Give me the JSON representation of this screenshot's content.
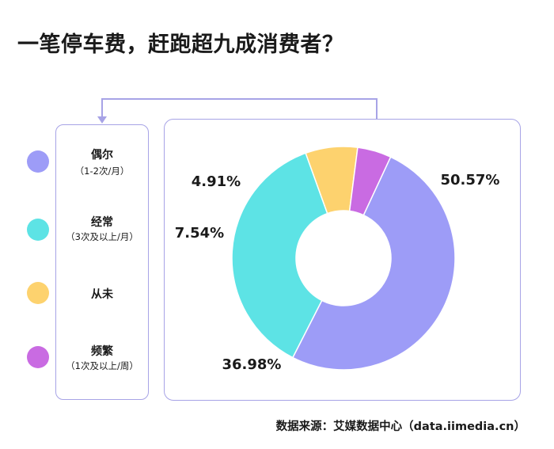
{
  "title": "一笔停车费，赶跑超九成消费者？",
  "legend": [
    {
      "label": "偶尔",
      "sub": "（1-2次/月）",
      "color": "#9d9cf7"
    },
    {
      "label": "经常",
      "sub": "（3次及以上/月）",
      "color": "#5de3e5"
    },
    {
      "label": "从未",
      "sub": "",
      "color": "#fdd26e"
    },
    {
      "label": "频繁",
      "sub": "（1次及以上/周）",
      "color": "#c96be2"
    }
  ],
  "chart_data": {
    "type": "pie",
    "categories": [
      "偶尔",
      "经常",
      "从未",
      "频繁"
    ],
    "values": [
      50.57,
      36.98,
      7.54,
      4.91
    ],
    "labels": [
      "50.57%",
      "36.98%",
      "7.54%",
      "4.91%"
    ],
    "colors": [
      "#9d9cf7",
      "#5de3e5",
      "#fdd26e",
      "#c96be2"
    ],
    "donut": true
  },
  "source": "数据来源：艾媒数据中心（data.iimedia.cn）"
}
